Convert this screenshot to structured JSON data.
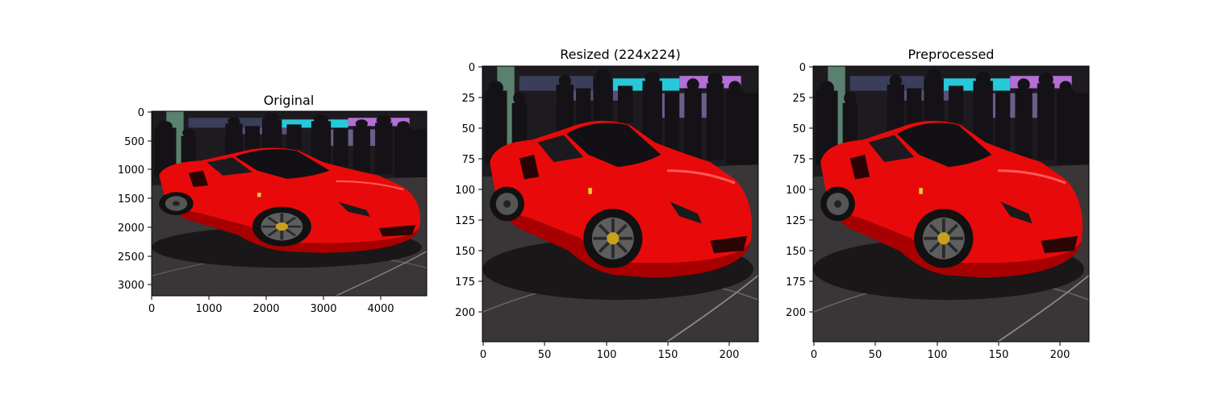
{
  "figure": {
    "panels": [
      {
        "title": "Original",
        "xlim": [
          0,
          4800
        ],
        "ylim": [
          3200,
          0
        ],
        "xticks": [
          "0",
          "1000",
          "2000",
          "3000",
          "4000"
        ],
        "yticks": [
          "0",
          "500",
          "1000",
          "1500",
          "2000",
          "2500",
          "3000"
        ]
      },
      {
        "title": "Resized (224x224)",
        "xlim": [
          0,
          224
        ],
        "ylim": [
          224,
          0
        ],
        "xticks": [
          "0",
          "50",
          "100",
          "150",
          "200"
        ],
        "yticks": [
          "0",
          "25",
          "50",
          "75",
          "100",
          "125",
          "150",
          "175",
          "200"
        ]
      },
      {
        "title": "Preprocessed",
        "xlim": [
          0,
          224
        ],
        "ylim": [
          224,
          0
        ],
        "xticks": [
          "0",
          "50",
          "100",
          "150",
          "200"
        ],
        "yticks": [
          "0",
          "25",
          "50",
          "75",
          "100",
          "125",
          "150",
          "175",
          "200"
        ]
      }
    ],
    "image_subject": "red-sports-car",
    "colors": {
      "car_red": "#e80a0a",
      "car_red_dark": "#a80000",
      "floor": "#3a3638",
      "crowd": "#1c1a1e",
      "screen_cyan": "#27c9d8"
    }
  }
}
